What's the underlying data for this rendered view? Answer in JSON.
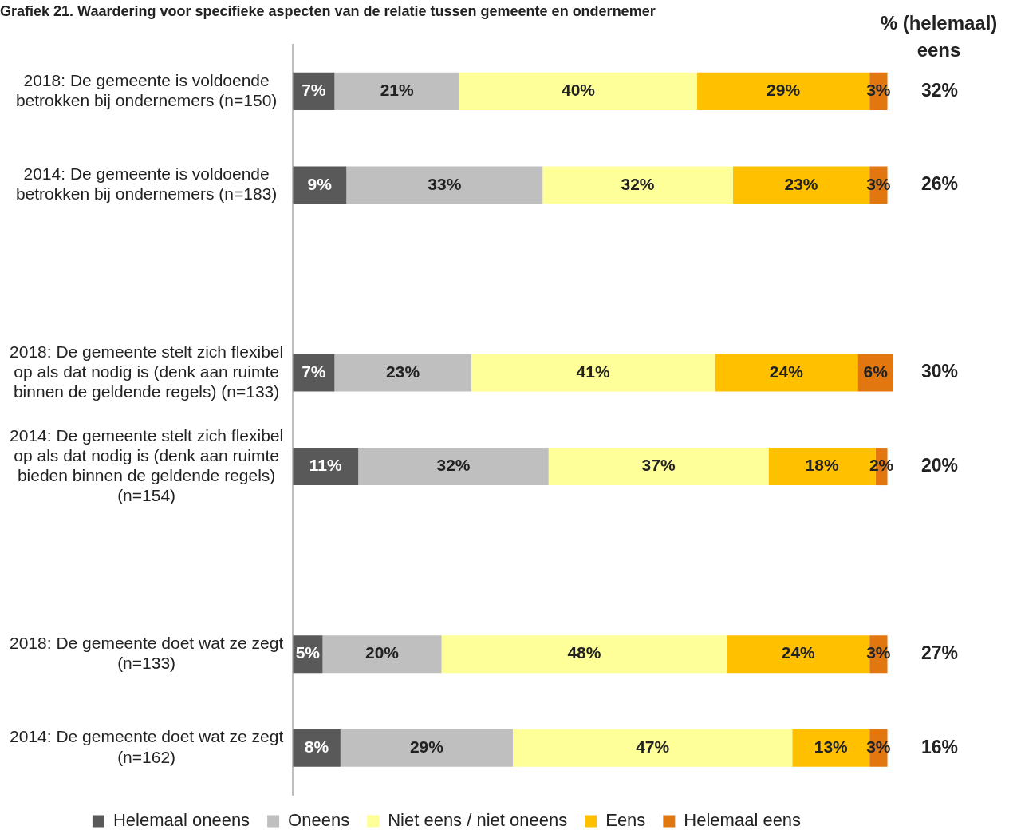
{
  "chart_data": {
    "type": "bar",
    "orientation": "horizontal",
    "stacked": true,
    "title": "Grafiek 21. Waardering voor specifieke aspecten van de relatie tussen gemeente en ondernemer",
    "categories": [
      "2018: De gemeente is voldoende betrokken bij ondernemers (n=150)",
      "2014: De gemeente is voldoende betrokken bij ondernemers (n=183)",
      null,
      "2018: De gemeente stelt zich flexibel op als dat nodig is (denk aan ruimte binnen de geldende regels) (n=133)",
      "2014: De gemeente stelt zich flexibel op als dat nodig is (denk aan ruimte bieden binnen de geldende regels) (n=154)",
      null,
      "2018: De gemeente doet wat ze zegt (n=133)",
      "2014: De gemeente doet wat ze zegt (n=162)"
    ],
    "series": [
      {
        "name": "Helemaal oneens",
        "color": "#595959",
        "values": [
          7,
          9,
          null,
          7,
          11,
          null,
          5,
          8
        ],
        "value_labels": [
          "7%",
          "9%",
          null,
          "7%",
          "11%",
          null,
          "5%",
          "8%"
        ]
      },
      {
        "name": "Oneens",
        "color": "#bfbfbf",
        "values": [
          21,
          33,
          null,
          23,
          32,
          null,
          20,
          29
        ],
        "value_labels": [
          "21%",
          "33%",
          null,
          "23%",
          "32%",
          null,
          "20%",
          "29%"
        ]
      },
      {
        "name": "Niet eens / niet oneens",
        "color": "#ffff99",
        "values": [
          40,
          32,
          null,
          41,
          37,
          null,
          48,
          47
        ],
        "value_labels": [
          "40%",
          "32%",
          null,
          "41%",
          "37%",
          null,
          "48%",
          "47%"
        ]
      },
      {
        "name": "Eens",
        "color": "#ffc000",
        "values": [
          29,
          23,
          null,
          24,
          18,
          null,
          24,
          13
        ],
        "value_labels": [
          "29%",
          "23%",
          null,
          "24%",
          "18%",
          null,
          "24%",
          "13%"
        ]
      },
      {
        "name": "Helemaal eens",
        "color": "#e3770f",
        "values": [
          3,
          3,
          null,
          6,
          2,
          null,
          3,
          3
        ],
        "value_labels": [
          "3%",
          "3%",
          null,
          "6%",
          "2%",
          null,
          "3%",
          "3%"
        ]
      }
    ],
    "annotations": [
      "% (helemaal) eens",
      "32%",
      "26%",
      "30%",
      "20%",
      "27%",
      "16%"
    ],
    "xlim": [
      0,
      101
    ],
    "tick_labels": "y",
    "legend": "bottom",
    "grid": false
  }
}
